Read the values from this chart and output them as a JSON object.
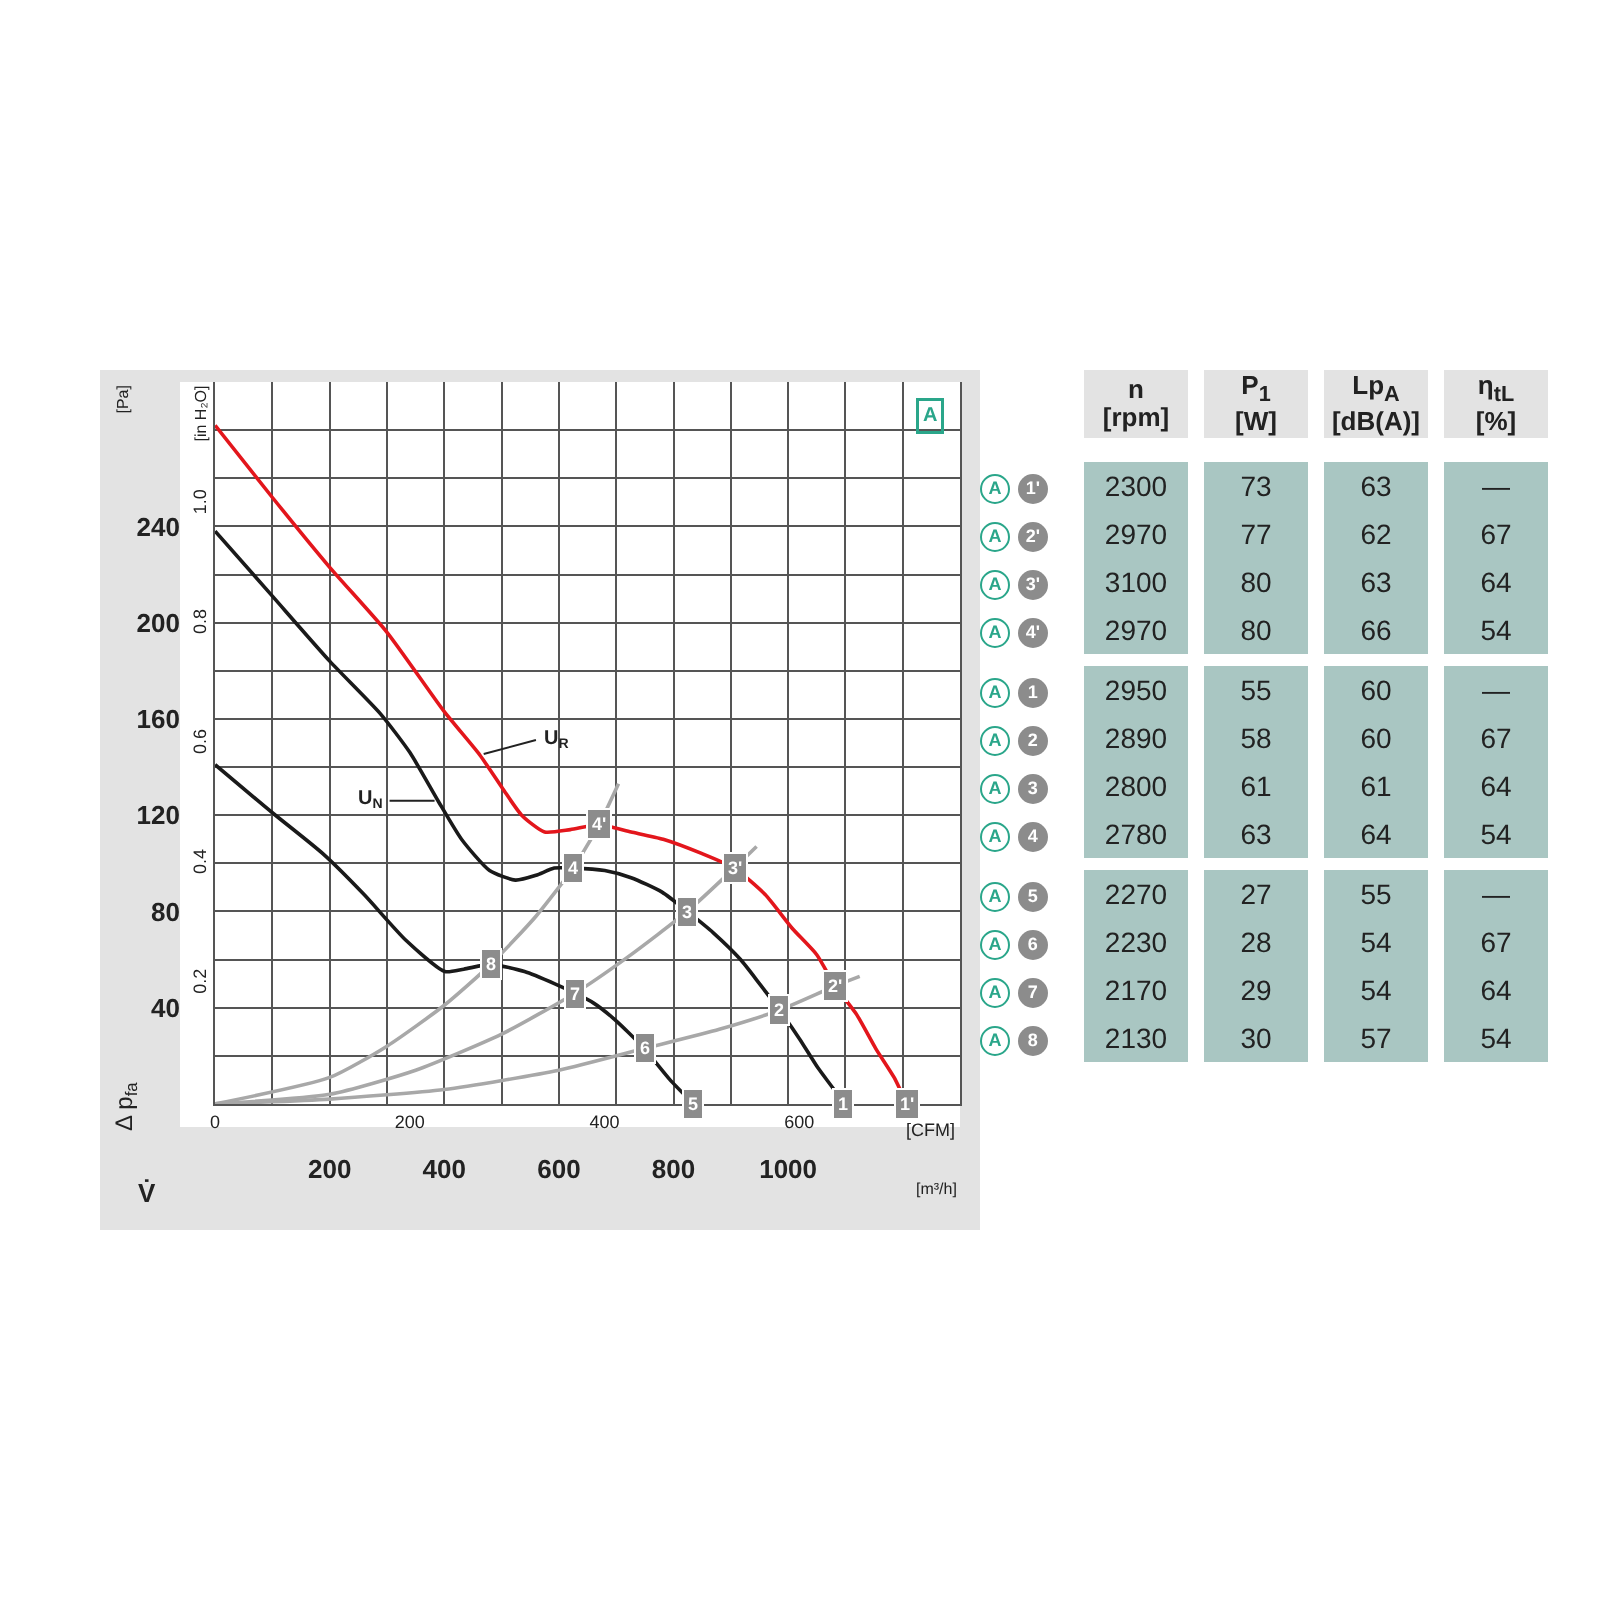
{
  "chart_data": [
    {
      "type": "line",
      "xlabel": "V̇",
      "ylabel": "Δ p$_{fa}$",
      "y2label": "[in H₂O]",
      "x2label": "[CFM]",
      "xlim": [
        0,
        1300
      ],
      "xticks": [
        {
          "value": 100,
          "label": null
        },
        200,
        {
          "value": 300,
          "label": null
        },
        400,
        {
          "value": 500,
          "label": null
        },
        600,
        {
          "value": 700,
          "label": null
        },
        800,
        {
          "value": 900,
          "label": null
        },
        1000,
        {
          "value": 1100,
          "label": null
        },
        {
          "value": 1200,
          "label": null
        }
      ],
      "x2lim": [
        0,
        765.2
      ],
      "x2ticks": [
        0,
        200,
        400,
        600
      ],
      "ylim": [
        0,
        300
      ],
      "yticks": [
        {
          "value": 20,
          "label": null
        },
        40,
        {
          "value": 60,
          "label": null
        },
        80,
        {
          "value": 100,
          "label": null
        },
        120,
        {
          "value": 140,
          "label": null
        },
        160,
        {
          "value": 180,
          "label": null
        },
        200,
        {
          "value": 220,
          "label": null
        },
        240,
        {
          "value": 260,
          "label": null
        },
        {
          "value": 280,
          "label": null
        }
      ],
      "y2lim": [
        0,
        1.204
      ],
      "y2ticks": [
        0.2,
        0.4,
        0.6,
        0.8,
        {
          "value": 1,
          "label": "1.0"
        }
      ],
      "grid": true,
      "marker": "none",
      "line_style": "solid",
      "series": [
        {
          "color": "#e3161c",
          "x": [
            0,
            100,
            200,
            300,
            400,
            462,
            502,
            535,
            575,
            620,
            670,
            726,
            782,
            850,
            906,
            960,
            1007,
            1050,
            1082,
            1120,
            1153,
            1185,
            1207
          ],
          "values": [
            282,
            252,
            223,
            196,
            163,
            145,
            131,
            120,
            113,
            114,
            116,
            113,
            110,
            104,
            98,
            87,
            73,
            62,
            49,
            37,
            23,
            11,
            0
          ]
        },
        {
          "color": "#1a1a1a",
          "x": [
            0,
            100,
            200,
            289,
            340,
            389,
            430,
            479,
            524,
            560,
            592,
            625,
            680,
            726,
            780,
            824,
            870,
            917,
            950,
            985,
            1020,
            1052,
            1080,
            1097
          ],
          "values": [
            238,
            211,
            184,
            162,
            146,
            126,
            110,
            97,
            93,
            95,
            98,
            98,
            97,
            94,
            88,
            80,
            71,
            60,
            50,
            39,
            27,
            15,
            6,
            0
          ]
        },
        {
          "color": "#1a1a1a",
          "x": [
            0,
            100,
            188,
            260,
            333,
            401,
            434,
            481,
            540,
            592,
            628,
            660,
            693,
            720,
            749,
            794,
            835
          ],
          "values": [
            141,
            121,
            104,
            87,
            68,
            55,
            56,
            58,
            55,
            50,
            46,
            42,
            36,
            30,
            23,
            10,
            0
          ]
        },
        {
          "color": "#a8a8a8",
          "x": [
            0,
            200,
            300,
            400,
            481,
            560,
            625,
            670,
            704
          ],
          "values": [
            0,
            11,
            24,
            41,
            58,
            78,
            98,
            116,
            133
          ]
        },
        {
          "color": "#a8a8a8",
          "x": [
            0,
            200,
            350,
            500,
            628,
            720,
            824,
            906,
            945
          ],
          "values": [
            0,
            4,
            14,
            29,
            46,
            61,
            80,
            98,
            107
          ]
        },
        {
          "color": "#a8a8a8",
          "x": [
            0,
            200,
            400,
            600,
            749,
            880,
            985,
            1082,
            1125
          ],
          "values": [
            0,
            2,
            6,
            14,
            23,
            31,
            39,
            49,
            53
          ]
        }
      ],
      "annotations": [
        {
          "text": "U$_{R}$",
          "x": 462,
          "y": 145
        },
        {
          "text": "U$_{N}$",
          "x": 390,
          "y": 126
        },
        "A",
        "[Pa]",
        "[m³/h]",
        {
          "text": "1'",
          "x": 1207,
          "y": 0
        },
        {
          "text": "2'",
          "x": 1082,
          "y": 49
        },
        {
          "text": "3'",
          "x": 906,
          "y": 98
        },
        {
          "text": "4'",
          "x": 670,
          "y": 116
        },
        {
          "text": "1",
          "x": 1097,
          "y": 0
        },
        {
          "text": "2",
          "x": 985,
          "y": 39
        },
        {
          "text": "3",
          "x": 824,
          "y": 80
        },
        {
          "text": "4",
          "x": 625,
          "y": 98
        },
        {
          "text": "5",
          "x": 835,
          "y": 0
        },
        {
          "text": "6",
          "x": 749,
          "y": 23
        },
        {
          "text": "7",
          "x": 628,
          "y": 46
        },
        {
          "text": "8",
          "x": 481,
          "y": 58
        }
      ]
    },
    {
      "type": "heatmap",
      "categories": [
        "n [rpm]",
        "P$_{1}$ [W]",
        "Lp$_{A}$ [dB(A)]",
        "η$_{tL}$ [%]"
      ],
      "y_categories": [
        "1'",
        "2'",
        "3'",
        "4'",
        "1",
        "2",
        "3",
        "4",
        "5",
        "6",
        "7",
        "8"
      ],
      "cells": [
        [
          null,
          null,
          null,
          null
        ],
        [
          null,
          null,
          null,
          null
        ],
        [
          null,
          null,
          null,
          null
        ],
        [
          null,
          null,
          null,
          null
        ],
        [
          null,
          null,
          null,
          null
        ],
        [
          null,
          null,
          null,
          null
        ],
        [
          null,
          null,
          null,
          null
        ],
        [
          null,
          null,
          null,
          null
        ],
        [
          null,
          null,
          null,
          null
        ],
        [
          null,
          null,
          null,
          null
        ],
        [
          null,
          null,
          null,
          null
        ],
        [
          null,
          null,
          null,
          null
        ]
      ],
      "cell_labels": [
        [
          "2300",
          "73",
          "63",
          "—"
        ],
        [
          "2970",
          "77",
          "62",
          "67"
        ],
        [
          "3100",
          "80",
          "63",
          "64"
        ],
        [
          "2970",
          "80",
          "66",
          "54"
        ],
        [
          "2950",
          "55",
          "60",
          "—"
        ],
        [
          "2890",
          "58",
          "60",
          "67"
        ],
        [
          "2800",
          "61",
          "61",
          "64"
        ],
        [
          "2780",
          "63",
          "64",
          "54"
        ],
        [
          "2270",
          "27",
          "55",
          "—"
        ],
        [
          "2230",
          "28",
          "54",
          "67"
        ],
        [
          "2170",
          "29",
          "54",
          "64"
        ],
        [
          "2130",
          "30",
          "57",
          "54"
        ]
      ],
      "annotations": [
        "A"
      ]
    }
  ]
}
